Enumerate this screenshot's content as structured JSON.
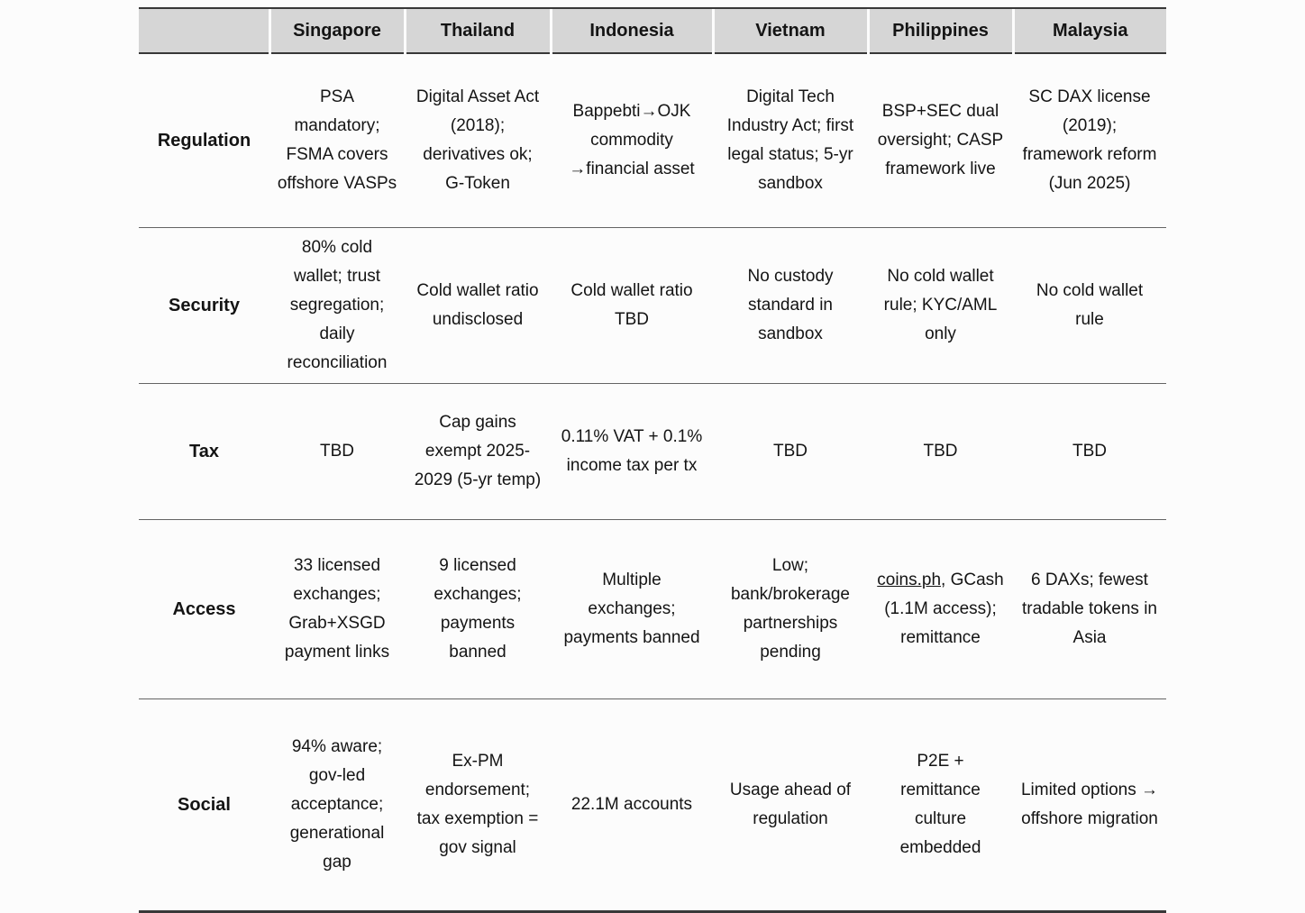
{
  "colors": {
    "header_bg": "#d6d6d6",
    "page_bg": "#fcfcfc",
    "border_dark": "#383838",
    "divider": "#646464",
    "text": "#141414"
  },
  "table": {
    "corner_label": "",
    "columns": [
      "Singapore",
      "Thailand",
      "Indonesia",
      "Vietnam",
      "Philippines",
      "Malaysia"
    ],
    "rows": [
      {
        "label": "Regulation",
        "cells": [
          "PSA mandatory; FSMA covers offshore VASPs",
          "Digital Asset Act (2018); derivatives ok; G-Token",
          "Bappebti→OJK commodity →financial asset",
          "Digital Tech Industry Act; first legal status; 5-yr sandbox",
          "BSP+SEC dual oversight; CASP framework live",
          "SC DAX license (2019); framework reform (Jun 2025)"
        ]
      },
      {
        "label": "Security",
        "cells": [
          "80% cold wallet; trust segregation; daily reconciliation",
          "Cold wallet ratio undisclosed",
          "Cold wallet ratio TBD",
          "No custody standard in sandbox",
          "No cold wallet rule; KYC/AML only",
          "No cold wallet rule"
        ]
      },
      {
        "label": "Tax",
        "cells": [
          "TBD",
          "Cap gains exempt 2025-2029 (5-yr temp)",
          "0.11% VAT + 0.1% income tax per tx",
          "TBD",
          "TBD",
          "TBD"
        ]
      },
      {
        "label": "Access",
        "cells": [
          "33 licensed exchanges; Grab+XSGD payment links",
          "9 licensed exchanges; payments banned",
          "Multiple exchanges; payments banned",
          "Low; bank/brokerage partnerships pending",
          {
            "parts": [
              {
                "text": "coins.ph",
                "link": true
              },
              {
                "text": ", GCash (1.1M access); remittance"
              }
            ]
          },
          "6 DAXs; fewest tradable tokens in Asia"
        ]
      },
      {
        "label": "Social",
        "cells": [
          "94% aware; gov-led acceptance; generational gap",
          "Ex-PM endorsement; tax exemption = gov signal",
          "22.1M accounts",
          "Usage ahead of regulation",
          "P2E + remittance culture embedded",
          "Limited options → offshore migration"
        ]
      }
    ]
  }
}
